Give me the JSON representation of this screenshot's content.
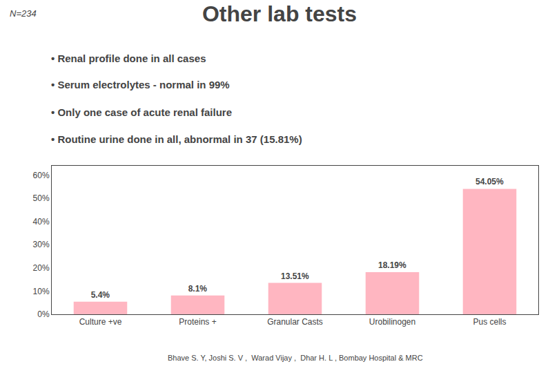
{
  "chart_data": {
    "type": "bar",
    "title": "Other lab tests",
    "annotations": [
      "N=234",
      "• Renal profile done in all cases",
      "• Serum electrolytes - normal in 99%",
      "• Only one case of acute renal failure",
      "• Routine urine done in all, abnormal in 37 (15.81%)",
      "Bhave S. Y, Joshi S. V ,  Warad Vijay ,  Dhar H. L , Bombay Hospital & MRC"
    ],
    "categories": [
      "Culture +ve",
      "Proteins +",
      "Granular Casts",
      "Urobilinogen",
      "Pus cells"
    ],
    "values": [
      5.4,
      8.1,
      13.51,
      18.19,
      54.05
    ],
    "value_labels": [
      "5.4%",
      "8.1%",
      "13.51%",
      "18.19%",
      "54.05%"
    ],
    "data_labels": true,
    "color": "#FFB6C1",
    "ylim": [
      0,
      64
    ],
    "yticks": [
      {
        "value": 0,
        "label": "0%"
      },
      {
        "value": 10,
        "label": "10%"
      },
      {
        "value": 20,
        "label": "20%"
      },
      {
        "value": 30,
        "label": "30%"
      },
      {
        "value": 40,
        "label": "40%"
      },
      {
        "value": 50,
        "label": "50%"
      },
      {
        "value": 60,
        "label": "60%"
      }
    ],
    "grid": false
  }
}
